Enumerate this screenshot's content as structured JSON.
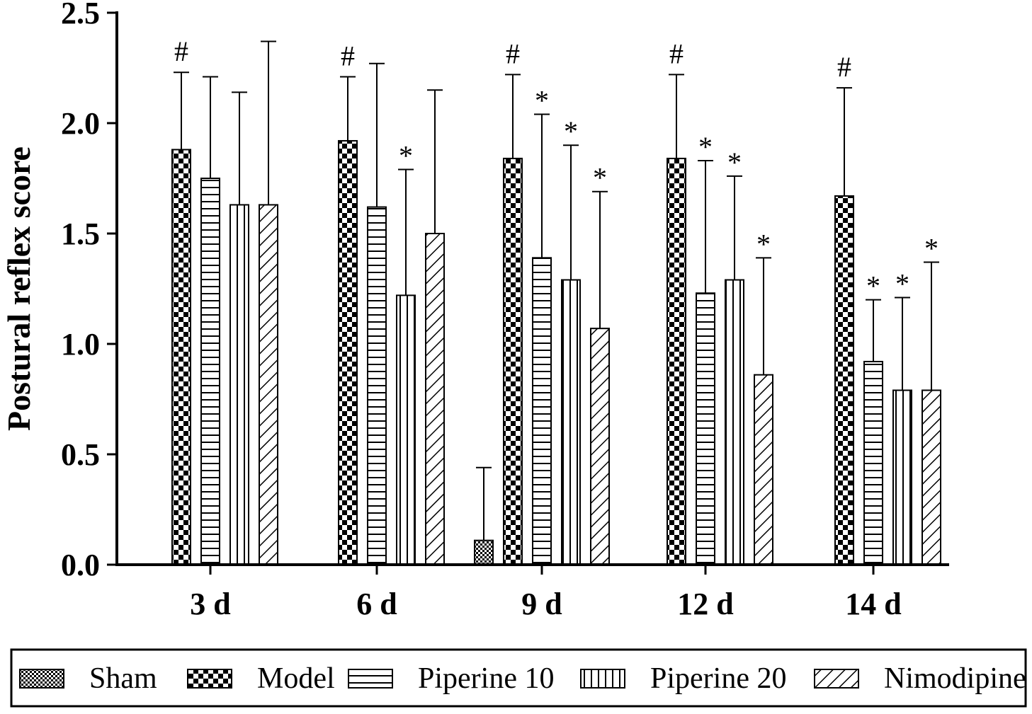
{
  "chart_data": {
    "type": "bar",
    "ylabel": "Postural reflex score",
    "xlabel": "",
    "ylim": [
      0,
      2.5
    ],
    "yticks": [
      "0.0",
      "0.5",
      "1.0",
      "1.5",
      "2.0",
      "2.5"
    ],
    "categories": [
      "3 d",
      "6 d",
      "9 d",
      "12 d",
      "14 d"
    ],
    "series": [
      {
        "name": "Sham",
        "pattern": "fine-checker",
        "values": [
          0,
          0,
          0.11,
          0,
          0
        ],
        "errors": [
          0,
          0,
          0.33,
          0,
          0
        ],
        "marks": [
          "",
          "",
          "",
          "",
          ""
        ]
      },
      {
        "name": "Model",
        "pattern": "checker",
        "values": [
          1.88,
          1.92,
          1.84,
          1.84,
          1.67
        ],
        "errors": [
          0.35,
          0.29,
          0.38,
          0.38,
          0.49
        ],
        "marks": [
          "#",
          "#",
          "#",
          "#",
          "#"
        ]
      },
      {
        "name": "Piperine 10",
        "pattern": "horizontal",
        "values": [
          1.75,
          1.62,
          1.39,
          1.23,
          0.92
        ],
        "errors": [
          0.46,
          0.65,
          0.65,
          0.6,
          0.28
        ],
        "marks": [
          "",
          "",
          "*",
          "*",
          "*"
        ]
      },
      {
        "name": "Piperine 20",
        "pattern": "vertical",
        "values": [
          1.63,
          1.22,
          1.29,
          1.29,
          0.79
        ],
        "errors": [
          0.51,
          0.57,
          0.61,
          0.47,
          0.42
        ],
        "marks": [
          "",
          "*",
          "*",
          "*",
          "*"
        ]
      },
      {
        "name": "Nimodipine",
        "pattern": "diagonal",
        "values": [
          1.63,
          1.5,
          1.07,
          0.86,
          0.79
        ],
        "errors": [
          0.74,
          0.65,
          0.62,
          0.53,
          0.58
        ],
        "marks": [
          "",
          "",
          "*",
          "*",
          "*"
        ]
      }
    ],
    "grid": false,
    "legend": "bottom"
  }
}
